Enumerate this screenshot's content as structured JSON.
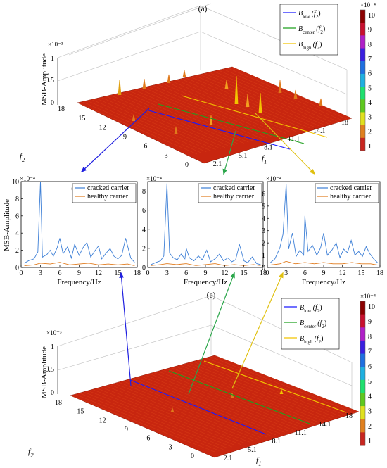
{
  "figure": {
    "panel_labels": {
      "a": "(a)",
      "b": "(b)",
      "c": "(c)",
      "d": "(d)",
      "e": "(e)"
    }
  },
  "colors": {
    "B_low": "#1a1aff",
    "B_center": "#1ea01e",
    "B_high": "#f2c400",
    "cracked": "#3d7fd6",
    "healthy": "#e07a1c",
    "surface": "#c8260f",
    "arrow_low": "#1f1fe0",
    "arrow_center": "#2aa64a",
    "arrow_high": "#e0c010"
  },
  "legend3d": [
    "B_low(f2)",
    "B_center(f2)",
    "B_high(f2)"
  ],
  "legend3d_parts": [
    {
      "base": "B",
      "sub": "low",
      "arg": "(f",
      "argsub": "2",
      "close": ")"
    },
    {
      "base": "B",
      "sub": "center",
      "arg": "(f",
      "argsub": "2",
      "close": ")"
    },
    {
      "base": "B",
      "sub": "high",
      "arg": "(f",
      "argsub": "2",
      "close": ")"
    }
  ],
  "colorbar": {
    "ticks": [
      "10",
      "9",
      "8",
      "7",
      "6",
      "5",
      "4",
      "3",
      "2",
      "1"
    ],
    "multiplier": "×10⁻⁴",
    "colors": [
      "#8b0000",
      "#c8102e",
      "#b01fc8",
      "#3a1fe0",
      "#1f6fe0",
      "#1fb0e0",
      "#1fe06f",
      "#5fc81f",
      "#e0e01f",
      "#e0801f",
      "#c8261f"
    ]
  },
  "chart_data": [
    {
      "panel": "(a)",
      "type": "surface",
      "zlabel": "MSB-Amplitude",
      "zmultiplier": "×10⁻³",
      "zticks": [
        "0",
        "0.5",
        "1"
      ],
      "xlabel": "f1",
      "ylabel": "f2",
      "f1_ticks": [
        "2.1",
        "5.1",
        "8.1",
        "11.1",
        "14.1",
        "18"
      ],
      "f2_ticks": [
        "18",
        "15",
        "12",
        "9",
        "6",
        "3",
        "0"
      ],
      "zlim": [
        0,
        0.001
      ]
    },
    {
      "panel": "(b)",
      "type": "line",
      "xlabel": "Frequency/Hz",
      "ylabel": "MSB-Amplitude",
      "ymultiplier": "×10⁻⁴",
      "xlim": [
        0,
        18
      ],
      "ylim": [
        0,
        10
      ],
      "xticks": [
        "0",
        "3",
        "6",
        "9",
        "12",
        "15",
        "18"
      ],
      "yticks": [
        "0",
        "2",
        "4",
        "6",
        "8",
        "10"
      ],
      "series": [
        {
          "name": "cracked carrier",
          "x": [
            0.5,
            1.2,
            2.0,
            2.6,
            3.0,
            3.3,
            4.0,
            4.5,
            5.0,
            5.6,
            6.0,
            6.5,
            7.2,
            7.8,
            8.3,
            9.0,
            9.6,
            10.2,
            10.8,
            11.4,
            12.0,
            12.5,
            13.1,
            13.8,
            14.4,
            15.0,
            15.6,
            16.2,
            17.0,
            17.6
          ],
          "y": [
            0.5,
            0.8,
            1.0,
            1.8,
            10.0,
            1.2,
            1.5,
            2.0,
            1.3,
            2.3,
            3.4,
            1.6,
            2.4,
            1.1,
            2.7,
            1.4,
            2.3,
            2.9,
            1.2,
            1.9,
            2.5,
            1.0,
            1.6,
            2.2,
            1.3,
            1.0,
            1.4,
            3.4,
            1.1,
            0.6
          ]
        },
        {
          "name": "healthy carrier",
          "x": [
            0.5,
            2.0,
            3.0,
            4.5,
            6.0,
            7.5,
            9.0,
            10.5,
            12.0,
            13.5,
            15.0,
            16.5,
            17.6
          ],
          "y": [
            0.2,
            0.3,
            0.5,
            0.4,
            0.6,
            0.3,
            0.4,
            0.5,
            0.3,
            0.4,
            0.3,
            0.4,
            0.2
          ]
        }
      ]
    },
    {
      "panel": "(c)",
      "type": "line",
      "xlabel": "Frequency/Hz",
      "ylabel": "",
      "ymultiplier": "×10⁻⁴",
      "xlim": [
        0,
        18
      ],
      "ylim": [
        0,
        9
      ],
      "xticks": [
        "0",
        "3",
        "6",
        "9",
        "12",
        "15",
        "18"
      ],
      "yticks": [
        "0",
        "2",
        "4",
        "6",
        "8"
      ],
      "series": [
        {
          "name": "cracked carrier",
          "x": [
            0.5,
            1.2,
            2.0,
            2.5,
            3.0,
            3.4,
            4.0,
            4.6,
            5.2,
            5.8,
            6.0,
            6.5,
            7.2,
            7.9,
            8.5,
            9.2,
            9.8,
            10.5,
            11.2,
            11.8,
            12.5,
            13.1,
            13.7,
            14.3,
            15.0,
            15.6,
            16.3,
            17.0,
            17.6
          ],
          "y": [
            0.3,
            0.5,
            0.7,
            1.2,
            8.8,
            1.5,
            1.0,
            0.8,
            1.4,
            0.9,
            2.0,
            1.0,
            0.7,
            1.2,
            0.8,
            1.8,
            0.6,
            0.9,
            1.4,
            0.7,
            1.0,
            0.6,
            0.8,
            2.4,
            0.7,
            0.5,
            1.1,
            0.4,
            0.3
          ]
        },
        {
          "name": "healthy carrier",
          "x": [
            0.5,
            2.0,
            3.0,
            4.5,
            6.0,
            7.5,
            9.0,
            10.5,
            12.0,
            13.5,
            15.0,
            16.5,
            17.6
          ],
          "y": [
            0.2,
            0.3,
            0.4,
            0.3,
            0.4,
            0.2,
            0.3,
            0.4,
            0.2,
            0.3,
            0.2,
            0.3,
            0.2
          ]
        }
      ]
    },
    {
      "panel": "(d)",
      "type": "line",
      "xlabel": "Frequency/Hz",
      "ylabel": "",
      "ymultiplier": "×10⁻⁴",
      "xlim": [
        0,
        18
      ],
      "ylim": [
        0,
        7
      ],
      "xticks": [
        "0",
        "3",
        "6",
        "9",
        "12",
        "15",
        "18"
      ],
      "yticks": [
        "0",
        "1",
        "2",
        "3",
        "4",
        "5",
        "6"
      ],
      "series": [
        {
          "name": "cracked carrier",
          "x": [
            0.5,
            1.2,
            2.0,
            2.5,
            3.0,
            3.4,
            4.0,
            4.6,
            5.2,
            5.8,
            6.0,
            6.5,
            7.2,
            7.9,
            8.5,
            9.0,
            9.6,
            10.3,
            11.0,
            11.6,
            12.2,
            12.8,
            13.4,
            14.0,
            14.6,
            15.2,
            15.8,
            16.4,
            17.0,
            17.6
          ],
          "y": [
            0.4,
            0.7,
            1.6,
            2.7,
            6.8,
            1.5,
            2.8,
            0.9,
            1.4,
            1.0,
            4.2,
            1.3,
            1.8,
            1.0,
            1.6,
            2.8,
            1.0,
            1.4,
            2.0,
            0.8,
            1.5,
            1.2,
            2.2,
            1.0,
            1.3,
            0.9,
            1.7,
            1.1,
            0.7,
            0.4
          ]
        },
        {
          "name": "healthy carrier",
          "x": [
            0.5,
            2.0,
            3.0,
            4.5,
            6.0,
            7.5,
            9.0,
            10.5,
            12.0,
            13.5,
            15.0,
            16.5,
            17.6
          ],
          "y": [
            0.2,
            0.3,
            0.5,
            0.3,
            0.4,
            0.3,
            0.4,
            0.3,
            0.3,
            0.4,
            0.3,
            0.3,
            0.2
          ]
        }
      ]
    },
    {
      "panel": "(e)",
      "type": "surface",
      "zlabel": "MSB-Amplitude",
      "zmultiplier": "×10⁻³",
      "zticks": [
        "0",
        "0.5",
        "1"
      ],
      "xlabel": "f1",
      "ylabel": "f2",
      "f1_ticks": [
        "2.1",
        "5.1",
        "8.1",
        "11.1",
        "14.1",
        "18"
      ],
      "f2_ticks": [
        "18",
        "15",
        "12",
        "9",
        "6",
        "3",
        "0"
      ],
      "zlim": [
        0,
        0.001
      ]
    }
  ],
  "lineplot_xlabel": "Frequency/Hz",
  "lineplot_ylabel": "MSB-Amplitude"
}
